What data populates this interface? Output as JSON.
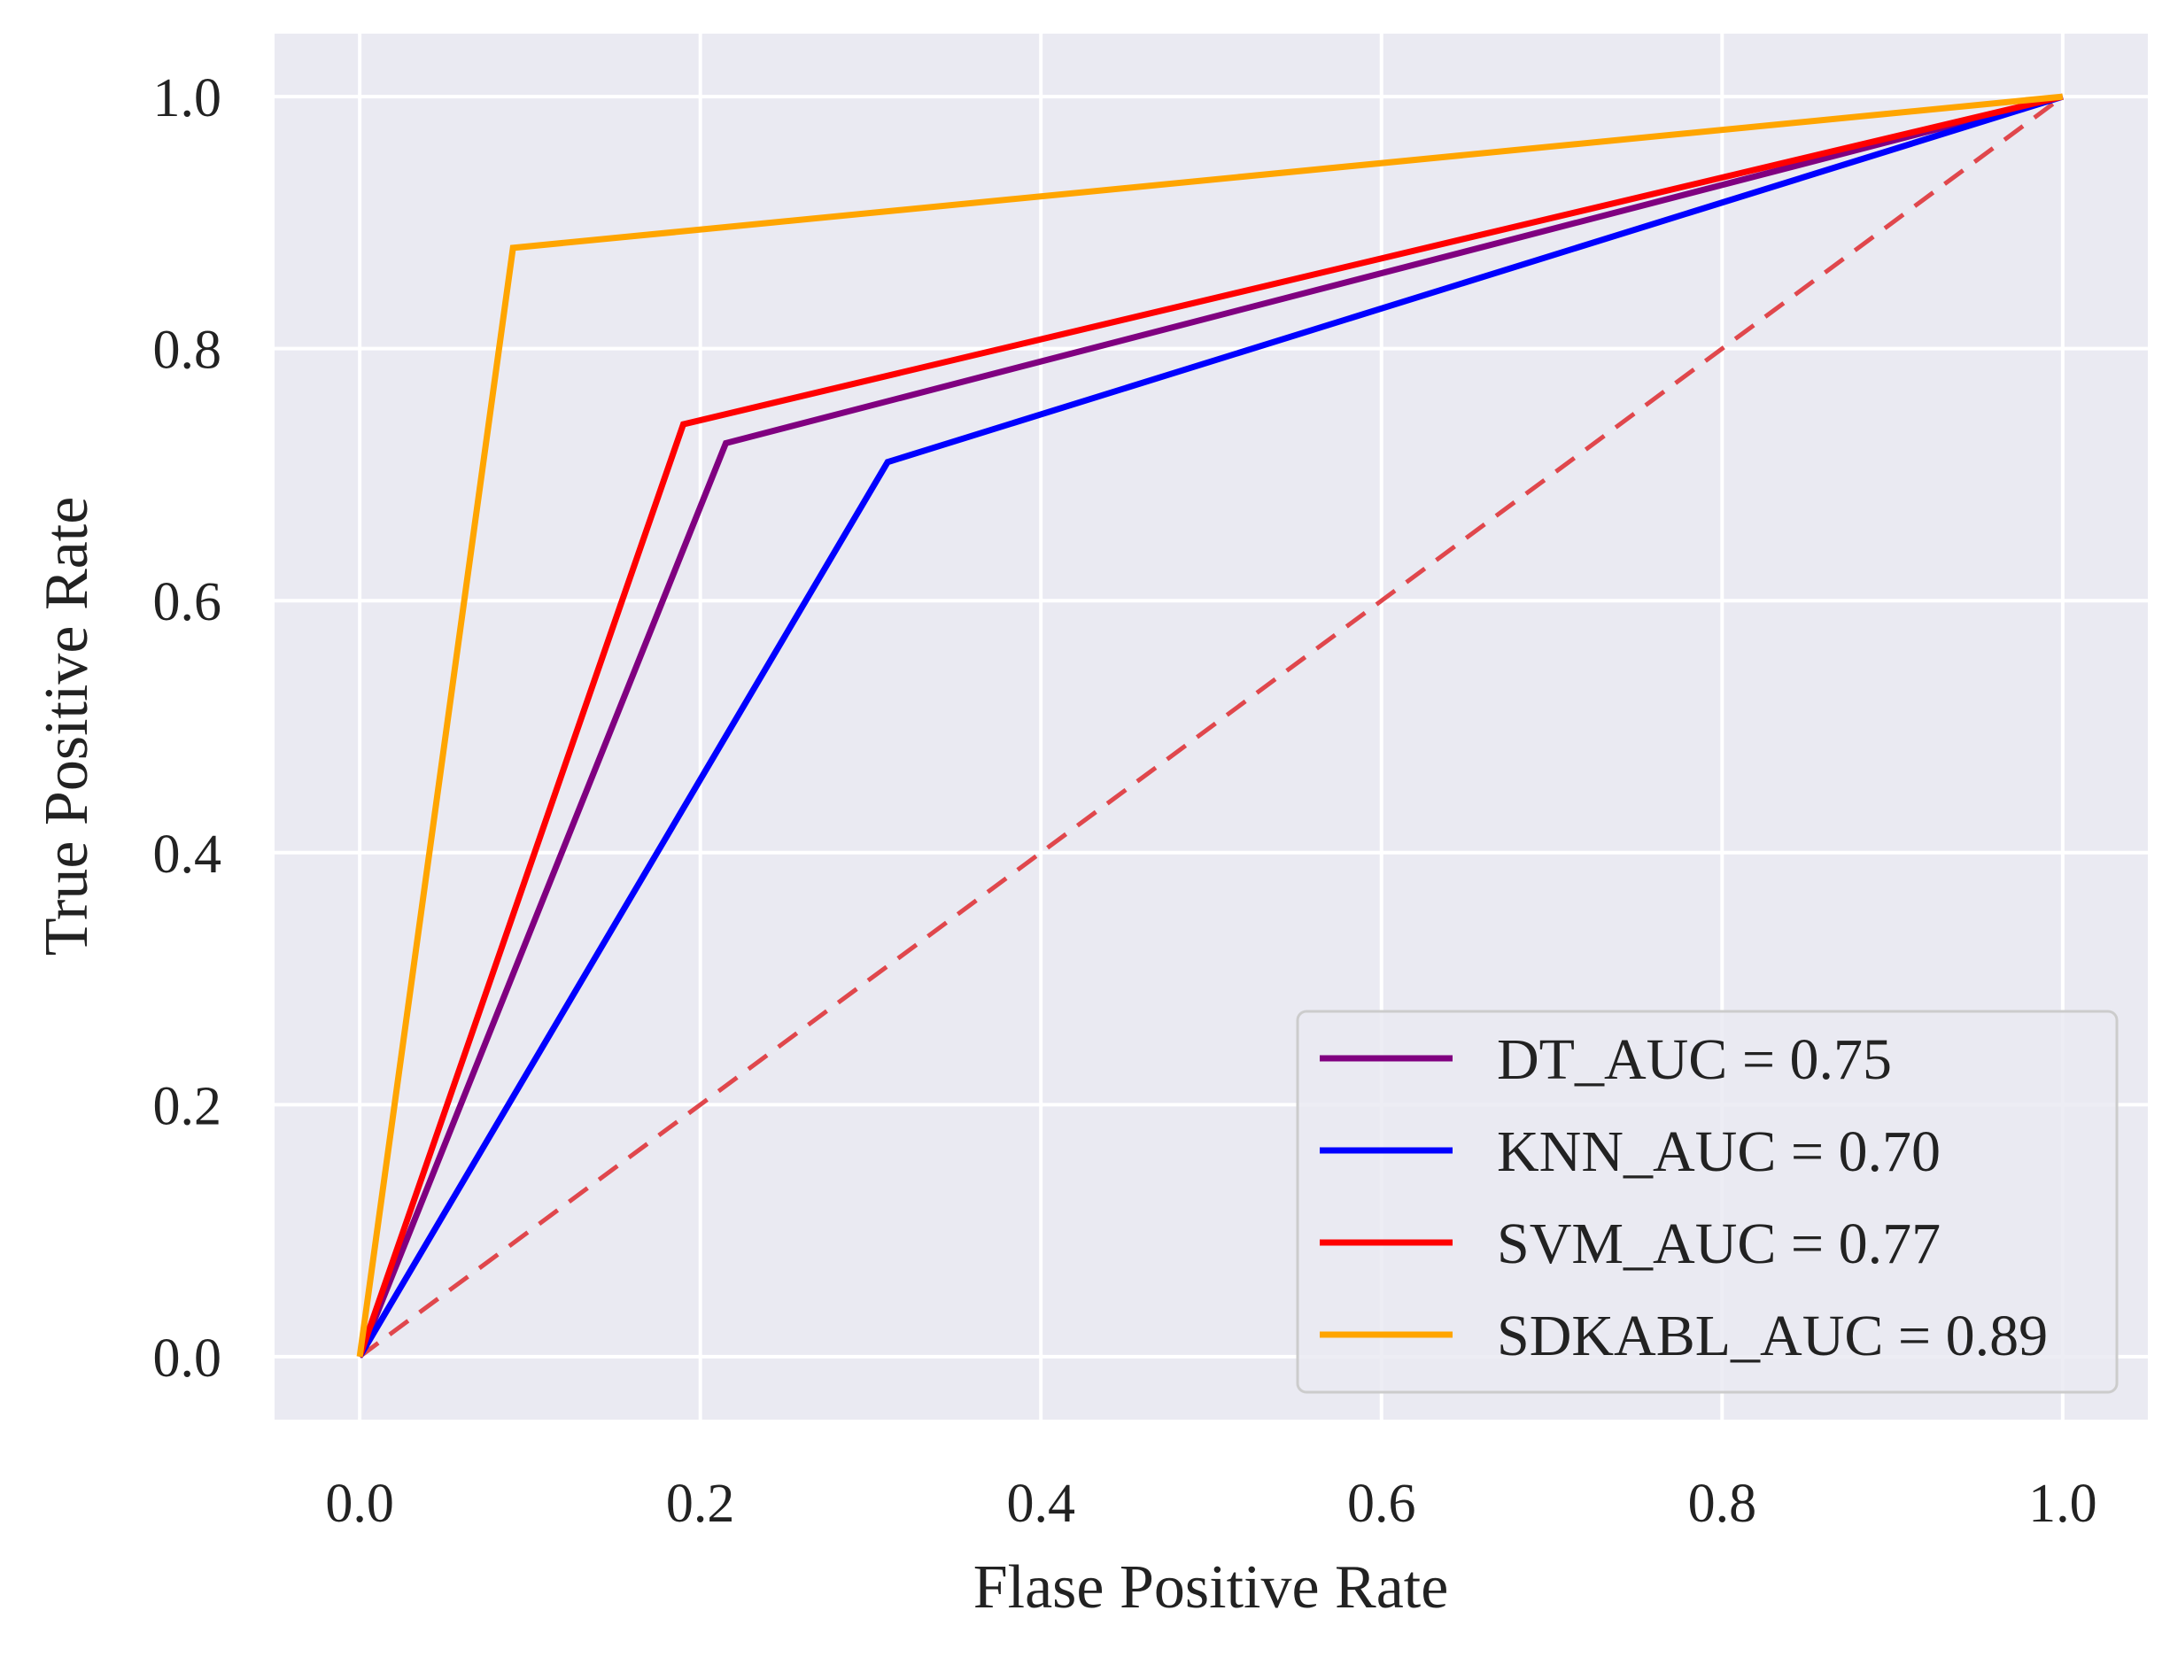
{
  "chart_data": {
    "type": "line",
    "title": "",
    "xlabel": "Flase Positive Rate",
    "ylabel": "True Positive Rate",
    "xlim": [
      -0.05,
      1.05
    ],
    "ylim": [
      -0.05,
      1.05
    ],
    "xticks": [
      0.0,
      0.2,
      0.4,
      0.6,
      0.8,
      1.0
    ],
    "xtick_labels": [
      "0.0",
      "0.2",
      "0.4",
      "0.6",
      "0.8",
      "1.0"
    ],
    "yticks": [
      0.0,
      0.2,
      0.4,
      0.6,
      0.8,
      1.0
    ],
    "ytick_labels": [
      "0.0",
      "0.2",
      "0.4",
      "0.6",
      "0.8",
      "1.0"
    ],
    "grid": true,
    "background_color": "#EAEAF2",
    "grid_color": "#FFFFFF",
    "legend_position": "lower right",
    "series": [
      {
        "name": "DT_AUC = 0.75",
        "color": "#800080",
        "style": "solid",
        "x": [
          0.0,
          0.215,
          1.0
        ],
        "y": [
          0.0,
          0.725,
          1.0
        ]
      },
      {
        "name": "KNN_AUC = 0.70",
        "color": "#0000FF",
        "style": "solid",
        "x": [
          0.0,
          0.31,
          1.0
        ],
        "y": [
          0.0,
          0.71,
          1.0
        ]
      },
      {
        "name": "SVM_AUC = 0.77",
        "color": "#FF0000",
        "style": "solid",
        "x": [
          0.0,
          0.19,
          1.0
        ],
        "y": [
          0.0,
          0.74,
          1.0
        ]
      },
      {
        "name": "SDKABL_AUC = 0.89",
        "color": "#FFA500",
        "style": "solid",
        "x": [
          0.0,
          0.09,
          1.0
        ],
        "y": [
          0.0,
          0.88,
          1.0
        ]
      }
    ],
    "reference_line": {
      "color": "#E0474C",
      "style": "dashed",
      "x": [
        0.0,
        1.0
      ],
      "y": [
        0.0,
        1.0
      ]
    }
  }
}
